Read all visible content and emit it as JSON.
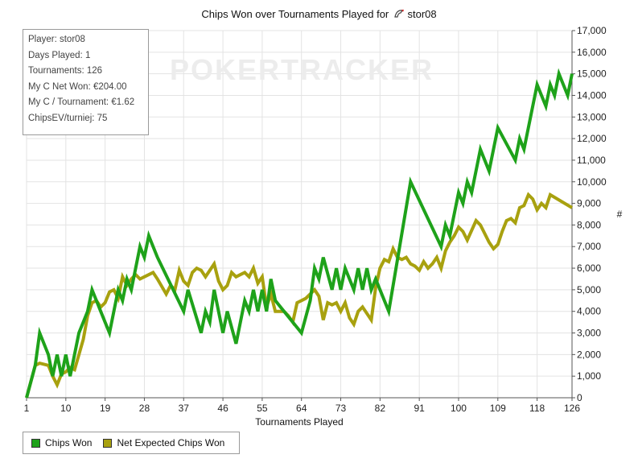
{
  "title": "Chips Won over Tournaments Played for",
  "player_name": "stor08",
  "watermark": "POKERTRACKER",
  "stats": [
    "Player: stor08",
    "Days Played: 1",
    "Tournaments: 126",
    "My C Net Won: €204.00",
    "My C / Tournament: €1.62",
    "ChipsEV/turniej: 75"
  ],
  "colors": {
    "chips_won": "#1ea21a",
    "net_expected": "#a8a10f",
    "grid": "#e3e3e3"
  },
  "chart_data": {
    "type": "line",
    "title": "Chips Won over Tournaments Played for stor08",
    "xlabel": "Tournaments Played",
    "ylabel": "#",
    "xlim": [
      1,
      126
    ],
    "ylim": [
      0,
      17000
    ],
    "x_ticks": [
      1,
      10,
      19,
      28,
      37,
      46,
      55,
      64,
      73,
      82,
      91,
      100,
      109,
      118,
      126
    ],
    "y_ticks": [
      "0",
      "1,000",
      "2,000",
      "3,000",
      "4,000",
      "5,000",
      "6,000",
      "7,000",
      "8,000",
      "9,000",
      "10,000",
      "11,000",
      "12,000",
      "13,000",
      "14,000",
      "15,000",
      "16,000",
      "17,000"
    ],
    "grid": true,
    "legend_position": "bottom-left",
    "series": [
      {
        "name": "Chips Won",
        "points": [
          [
            1,
            0
          ],
          [
            3,
            1500
          ],
          [
            4,
            3000
          ],
          [
            6,
            2000
          ],
          [
            7,
            1000
          ],
          [
            8,
            2000
          ],
          [
            9,
            1000
          ],
          [
            10,
            2000
          ],
          [
            11,
            1000
          ],
          [
            13,
            3000
          ],
          [
            14,
            3500
          ],
          [
            15,
            4000
          ],
          [
            16,
            5000
          ],
          [
            17,
            4500
          ],
          [
            18,
            4000
          ],
          [
            19,
            3500
          ],
          [
            20,
            3000
          ],
          [
            22,
            5000
          ],
          [
            23,
            4500
          ],
          [
            24,
            5500
          ],
          [
            25,
            5000
          ],
          [
            26,
            6000
          ],
          [
            27,
            7000
          ],
          [
            28,
            6500
          ],
          [
            29,
            7500
          ],
          [
            30,
            7000
          ],
          [
            31,
            6500
          ],
          [
            37,
            4000
          ],
          [
            38,
            5000
          ],
          [
            41,
            3000
          ],
          [
            42,
            4000
          ],
          [
            43,
            3500
          ],
          [
            44,
            5000
          ],
          [
            46,
            3000
          ],
          [
            47,
            4000
          ],
          [
            49,
            2500
          ],
          [
            51,
            4500
          ],
          [
            52,
            4000
          ],
          [
            53,
            5000
          ],
          [
            54,
            4000
          ],
          [
            55,
            5000
          ],
          [
            56,
            4000
          ],
          [
            57,
            5500
          ],
          [
            58,
            4500
          ],
          [
            64,
            3000
          ],
          [
            66,
            4500
          ],
          [
            67,
            6000
          ],
          [
            68,
            5500
          ],
          [
            69,
            6500
          ],
          [
            71,
            5000
          ],
          [
            72,
            6000
          ],
          [
            73,
            5000
          ],
          [
            74,
            6000
          ],
          [
            75,
            5500
          ],
          [
            76,
            5000
          ],
          [
            77,
            6000
          ],
          [
            78,
            5000
          ],
          [
            79,
            6000
          ],
          [
            80,
            5000
          ],
          [
            81,
            5500
          ],
          [
            84,
            4000
          ],
          [
            89,
            10000
          ],
          [
            96,
            7000
          ],
          [
            97,
            8000
          ],
          [
            98,
            7500
          ],
          [
            100,
            9500
          ],
          [
            101,
            9000
          ],
          [
            102,
            10000
          ],
          [
            103,
            9500
          ],
          [
            105,
            11500
          ],
          [
            107,
            10500
          ],
          [
            109,
            12500
          ],
          [
            113,
            11000
          ],
          [
            114,
            12000
          ],
          [
            115,
            11500
          ],
          [
            118,
            14500
          ],
          [
            120,
            13500
          ],
          [
            121,
            14500
          ],
          [
            122,
            14000
          ],
          [
            123,
            15000
          ],
          [
            125,
            14000
          ],
          [
            126,
            15000
          ]
        ]
      },
      {
        "name": "Net Expected Chips Won",
        "points": [
          [
            1,
            0
          ],
          [
            3,
            1500
          ],
          [
            4,
            1600
          ],
          [
            6,
            1500
          ],
          [
            7,
            1000
          ],
          [
            8,
            600
          ],
          [
            9,
            1100
          ],
          [
            10,
            1200
          ],
          [
            11,
            1400
          ],
          [
            12,
            1300
          ],
          [
            13,
            2000
          ],
          [
            14,
            2700
          ],
          [
            15,
            3800
          ],
          [
            16,
            4400
          ],
          [
            17,
            4500
          ],
          [
            18,
            4200
          ],
          [
            19,
            4400
          ],
          [
            20,
            4900
          ],
          [
            21,
            5000
          ],
          [
            22,
            4600
          ],
          [
            23,
            5600
          ],
          [
            24,
            5200
          ],
          [
            25,
            5500
          ],
          [
            26,
            5700
          ],
          [
            27,
            5500
          ],
          [
            28,
            5600
          ],
          [
            30,
            5800
          ],
          [
            31,
            5500
          ],
          [
            33,
            4800
          ],
          [
            34,
            5200
          ],
          [
            35,
            5000
          ],
          [
            36,
            5900
          ],
          [
            37,
            5400
          ],
          [
            38,
            5200
          ],
          [
            39,
            5800
          ],
          [
            40,
            6000
          ],
          [
            41,
            5900
          ],
          [
            42,
            5600
          ],
          [
            44,
            6200
          ],
          [
            45,
            5400
          ],
          [
            46,
            5000
          ],
          [
            47,
            5200
          ],
          [
            48,
            5800
          ],
          [
            49,
            5600
          ],
          [
            50,
            5700
          ],
          [
            51,
            5800
          ],
          [
            52,
            5600
          ],
          [
            53,
            6000
          ],
          [
            54,
            5300
          ],
          [
            55,
            5600
          ],
          [
            56,
            4200
          ],
          [
            57,
            4800
          ],
          [
            58,
            4000
          ],
          [
            60,
            4000
          ],
          [
            61,
            3800
          ],
          [
            62,
            3500
          ],
          [
            63,
            4400
          ],
          [
            64,
            4500
          ],
          [
            65,
            4600
          ],
          [
            67,
            5000
          ],
          [
            68,
            4700
          ],
          [
            69,
            3600
          ],
          [
            70,
            4400
          ],
          [
            71,
            4300
          ],
          [
            72,
            4400
          ],
          [
            73,
            4000
          ],
          [
            74,
            4400
          ],
          [
            75,
            3700
          ],
          [
            76,
            3400
          ],
          [
            77,
            4000
          ],
          [
            78,
            4200
          ],
          [
            80,
            3600
          ],
          [
            81,
            5100
          ],
          [
            82,
            6000
          ],
          [
            83,
            6400
          ],
          [
            84,
            6300
          ],
          [
            85,
            6900
          ],
          [
            86,
            6500
          ],
          [
            87,
            6400
          ],
          [
            88,
            6500
          ],
          [
            89,
            6200
          ],
          [
            90,
            6100
          ],
          [
            91,
            5900
          ],
          [
            92,
            6300
          ],
          [
            93,
            6000
          ],
          [
            94,
            6200
          ],
          [
            95,
            6500
          ],
          [
            96,
            6000
          ],
          [
            97,
            6800
          ],
          [
            98,
            7200
          ],
          [
            99,
            7500
          ],
          [
            100,
            7900
          ],
          [
            101,
            7700
          ],
          [
            102,
            7300
          ],
          [
            104,
            8200
          ],
          [
            105,
            8000
          ],
          [
            107,
            7200
          ],
          [
            108,
            6900
          ],
          [
            109,
            7100
          ],
          [
            110,
            7700
          ],
          [
            111,
            8200
          ],
          [
            112,
            8300
          ],
          [
            113,
            8100
          ],
          [
            114,
            8800
          ],
          [
            115,
            8900
          ],
          [
            116,
            9400
          ],
          [
            117,
            9200
          ],
          [
            118,
            8700
          ],
          [
            119,
            9000
          ],
          [
            120,
            8800
          ],
          [
            121,
            9400
          ],
          [
            126,
            8800
          ]
        ]
      }
    ]
  }
}
